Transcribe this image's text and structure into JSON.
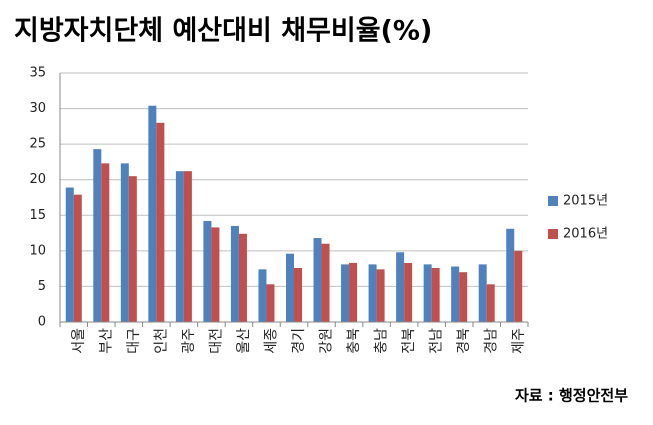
{
  "chart_data": {
    "type": "bar",
    "title": "지방자치단체 예산대비 채무비율(%)",
    "categories": [
      "서울",
      "부산",
      "대구",
      "인천",
      "광주",
      "대전",
      "울산",
      "세종",
      "경기",
      "강원",
      "충북",
      "충남",
      "전북",
      "전남",
      "경북",
      "경남",
      "제주"
    ],
    "series": [
      {
        "name": "2015년",
        "color": "#4f81bd",
        "values": [
          18.9,
          24.3,
          22.3,
          30.4,
          21.2,
          14.2,
          13.5,
          7.4,
          9.6,
          11.8,
          8.1,
          8.1,
          9.8,
          8.1,
          7.8,
          8.1,
          13.1
        ]
      },
      {
        "name": "2016년",
        "color": "#c0504d",
        "values": [
          17.9,
          22.3,
          20.5,
          28.0,
          21.2,
          13.3,
          12.4,
          5.3,
          7.6,
          11.0,
          8.3,
          7.4,
          8.3,
          7.6,
          7.0,
          5.3,
          10.0
        ]
      }
    ],
    "ylim": [
      0,
      35
    ],
    "yticks": [
      0,
      5,
      10,
      15,
      20,
      25,
      30,
      35
    ],
    "grid": true,
    "legend": "right",
    "source": "자료 : 행정안전부"
  }
}
